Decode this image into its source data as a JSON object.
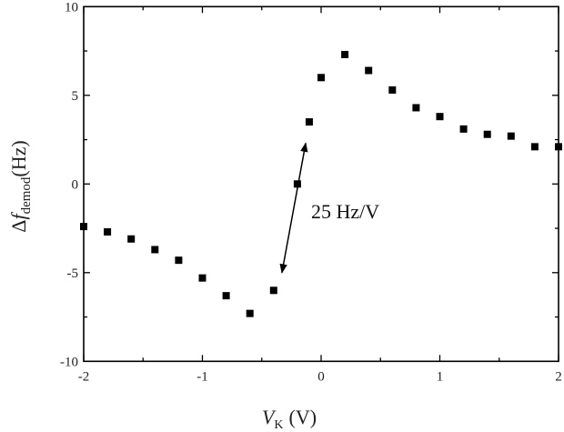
{
  "chart_data": {
    "type": "scatter",
    "xlabel": {
      "main": "V",
      "sub": "K",
      "unit": "(V)"
    },
    "ylabel": {
      "prefix": "Δ",
      "main": "f",
      "sub": "demod",
      "unit": "(Hz)"
    },
    "xlim": [
      -2,
      2
    ],
    "ylim": [
      -10,
      10
    ],
    "xticks": [
      -2,
      -1,
      0,
      1,
      2
    ],
    "yticks": [
      -10,
      -5,
      0,
      5,
      10
    ],
    "x_tick_labels": [
      "-2",
      "-1",
      "0",
      "1",
      "2"
    ],
    "y_tick_labels": [
      "-10",
      "-5",
      "0",
      "5",
      "10"
    ],
    "grid": false,
    "marker": "square",
    "color": "#000000",
    "series": [
      {
        "x": [
          -2.0,
          -1.8,
          -1.6,
          -1.4,
          -1.2,
          -1.0,
          -0.8,
          -0.6,
          -0.4,
          -0.2,
          -0.1,
          0.0,
          0.2,
          0.4,
          0.6,
          0.8,
          1.0,
          1.2,
          1.4,
          1.6,
          1.8,
          2.0
        ],
        "y": [
          -2.4,
          -2.7,
          -3.1,
          -3.7,
          -4.3,
          -5.3,
          -6.3,
          -7.3,
          -6.0,
          0.0,
          3.5,
          6.0,
          7.3,
          6.4,
          5.3,
          4.3,
          3.8,
          3.1,
          2.8,
          2.7,
          2.1,
          2.1
        ]
      }
    ],
    "annotations": [
      {
        "text": "25 Hz/V",
        "arrow": {
          "from": [
            -0.33,
            -5.0
          ],
          "to": [
            -0.13,
            2.3
          ],
          "double_headed": true
        }
      }
    ]
  }
}
